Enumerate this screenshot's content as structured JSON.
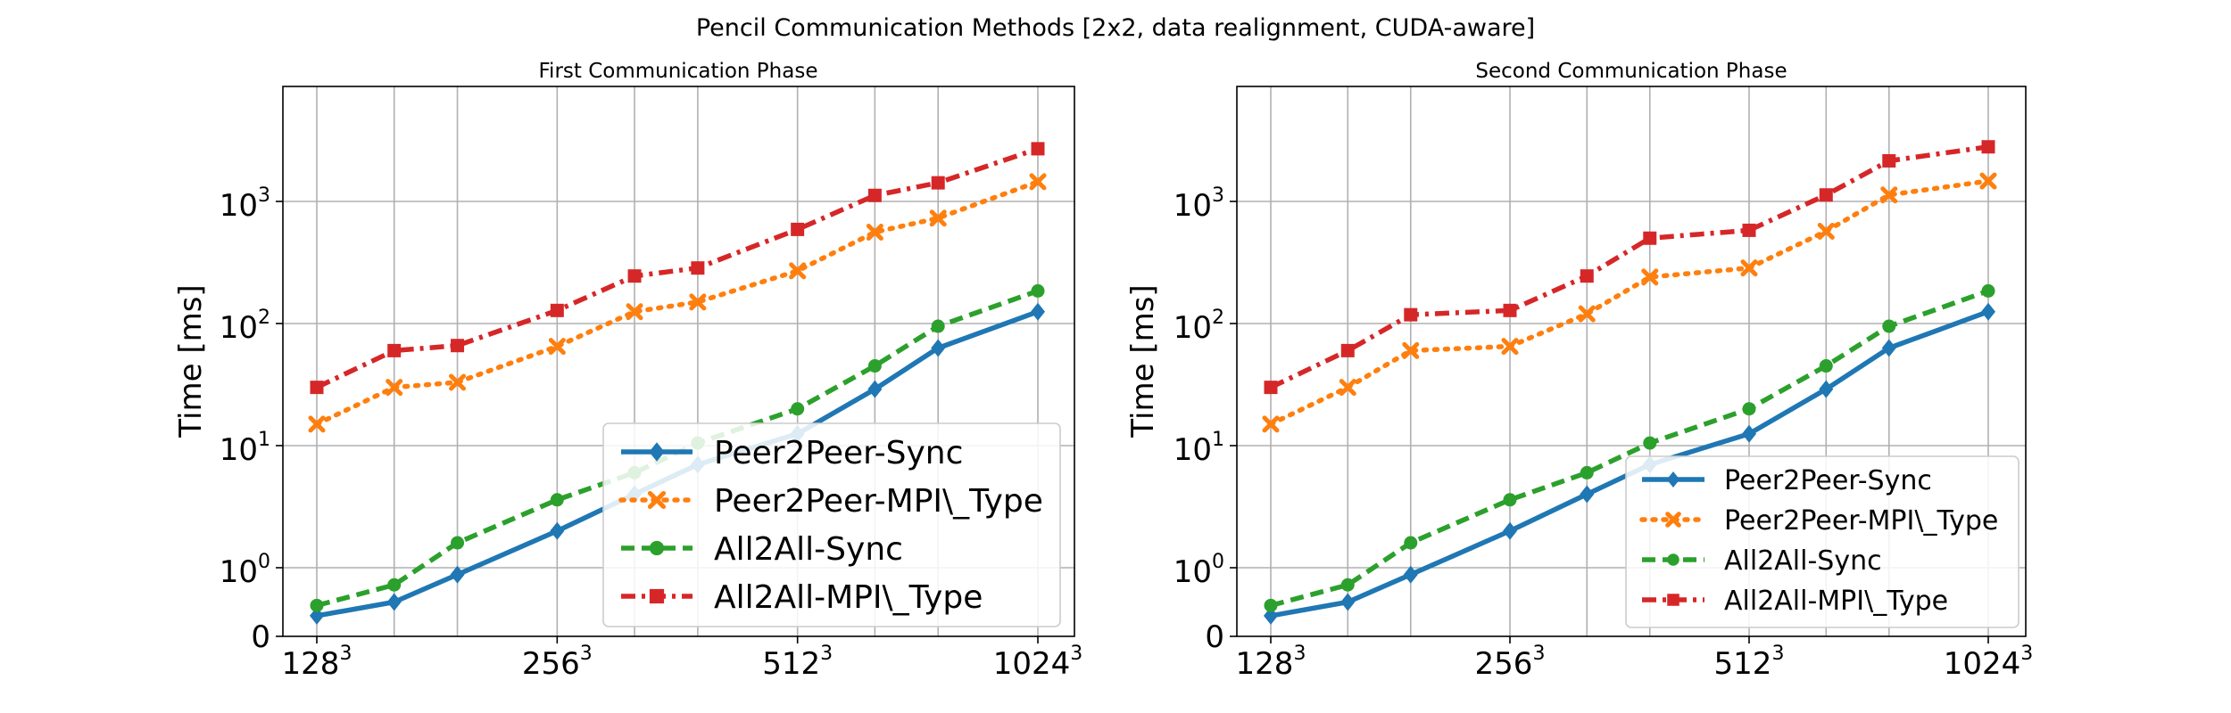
{
  "figure": {
    "title": "Pencil Communication Methods [2x2, data realignment, CUDA-aware]"
  },
  "series_styles": [
    {
      "name": "Peer2Peer-Sync",
      "color": "#1f77b4",
      "dash": "none",
      "marker": "diamond"
    },
    {
      "name": "Peer2Peer-MPI\\_Type",
      "color": "#ff7f0e",
      "dash": "dotted",
      "marker": "x"
    },
    {
      "name": "All2All-Sync",
      "color": "#2ca02c",
      "dash": "dashed",
      "marker": "circle"
    },
    {
      "name": "All2All-MPI\\_Type",
      "color": "#d62728",
      "dash": "dashdot",
      "marker": "square"
    }
  ],
  "chart_data": [
    {
      "type": "line",
      "title": "First Communication Phase",
      "xlabel": "",
      "ylabel": "Time [ms]",
      "yscale": "symlog",
      "grid": true,
      "legend_placement": "lower-right",
      "x": [
        128,
        160,
        192,
        256,
        320,
        384,
        512,
        640,
        768,
        1024
      ],
      "x_tick_labels": [
        {
          "x": 128,
          "base": "128",
          "exp": "3"
        },
        {
          "x": 256,
          "base": "256",
          "exp": "3"
        },
        {
          "x": 512,
          "base": "512",
          "exp": "3"
        },
        {
          "x": 1024,
          "base": "1024",
          "exp": "3"
        }
      ],
      "y_tick_labels": [
        {
          "y": 0,
          "base": "0",
          "exp": ""
        },
        {
          "y": 1,
          "base": "10",
          "exp": "0"
        },
        {
          "y": 10,
          "base": "10",
          "exp": "1"
        },
        {
          "y": 100,
          "base": "10",
          "exp": "2"
        },
        {
          "y": 1000,
          "base": "10",
          "exp": "3"
        }
      ],
      "series": [
        {
          "name": "Peer2Peer-Sync",
          "values": [
            0.3,
            0.5,
            0.9,
            2.0,
            4.0,
            7.0,
            12.5,
            29,
            63,
            125
          ]
        },
        {
          "name": "Peer2Peer-MPI\\_Type",
          "values": [
            15,
            30,
            33,
            65,
            125,
            150,
            270,
            560,
            730,
            1450
          ]
        },
        {
          "name": "All2All-Sync",
          "values": [
            0.45,
            0.75,
            1.6,
            3.6,
            6.0,
            10.5,
            20,
            45,
            95,
            185
          ]
        },
        {
          "name": "All2All-MPI\\_Type",
          "values": [
            30,
            60,
            66,
            128,
            245,
            285,
            590,
            1120,
            1420,
            2700
          ]
        }
      ]
    },
    {
      "type": "line",
      "title": "Second Communication Phase",
      "xlabel": "",
      "ylabel": "Time [ms]",
      "yscale": "symlog",
      "grid": true,
      "legend_placement": "lower-right",
      "x": [
        128,
        160,
        192,
        256,
        320,
        384,
        512,
        640,
        768,
        1024
      ],
      "x_tick_labels": [
        {
          "x": 128,
          "base": "128",
          "exp": "3"
        },
        {
          "x": 256,
          "base": "256",
          "exp": "3"
        },
        {
          "x": 512,
          "base": "512",
          "exp": "3"
        },
        {
          "x": 1024,
          "base": "1024",
          "exp": "3"
        }
      ],
      "y_tick_labels": [
        {
          "y": 0,
          "base": "0",
          "exp": ""
        },
        {
          "y": 1,
          "base": "10",
          "exp": "0"
        },
        {
          "y": 10,
          "base": "10",
          "exp": "1"
        },
        {
          "y": 100,
          "base": "10",
          "exp": "2"
        },
        {
          "y": 1000,
          "base": "10",
          "exp": "3"
        }
      ],
      "series": [
        {
          "name": "Peer2Peer-Sync",
          "values": [
            0.3,
            0.5,
            0.9,
            2.0,
            4.0,
            7.0,
            12.5,
            29,
            63,
            125
          ]
        },
        {
          "name": "Peer2Peer-MPI\\_Type",
          "values": [
            15,
            30,
            60,
            65,
            120,
            240,
            285,
            570,
            1130,
            1470
          ]
        },
        {
          "name": "All2All-Sync",
          "values": [
            0.45,
            0.75,
            1.6,
            3.6,
            6.0,
            10.5,
            20,
            45,
            95,
            185
          ]
        },
        {
          "name": "All2All-MPI\\_Type",
          "values": [
            30,
            60,
            118,
            128,
            245,
            500,
            580,
            1130,
            2150,
            2800
          ]
        }
      ]
    }
  ]
}
